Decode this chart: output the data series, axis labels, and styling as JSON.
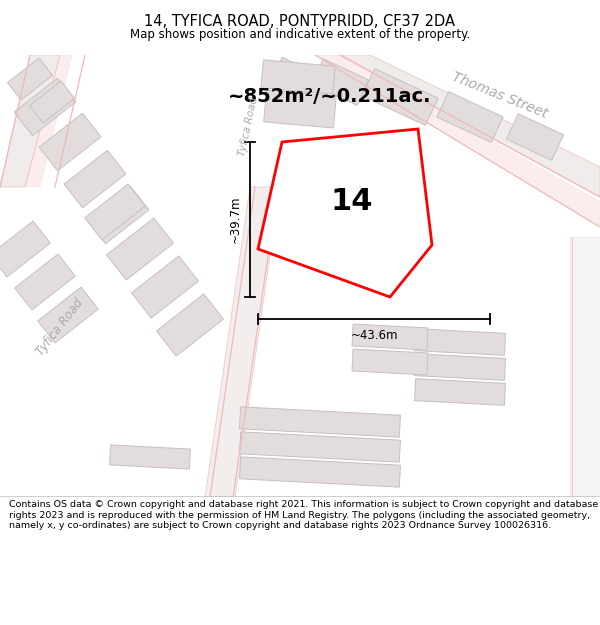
{
  "title": "14, TYFICA ROAD, PONTYPRIDD, CF37 2DA",
  "subtitle": "Map shows position and indicative extent of the property.",
  "footer": "Contains OS data © Crown copyright and database right 2021. This information is subject to Crown copyright and database rights 2023 and is reproduced with the permission of HM Land Registry. The polygons (including the associated geometry, namely x, y co-ordinates) are subject to Crown copyright and database rights 2023 Ordnance Survey 100026316.",
  "area_label": "~852m²/~0.211ac.",
  "number_label": "14",
  "width_label": "~43.6m",
  "height_label": "~39.7m",
  "street_thomas": "Thomas Street",
  "street_tyfica_left": "Tyfica Road",
  "street_tyfica_mid": "Tyfica Road",
  "map_bg": "#f2efef",
  "plot_color": "#ff0000",
  "road_color": "#f0b8b8",
  "building_fill": "#e2dcdc",
  "building_edge": "#c8c0c0",
  "title_fontsize": 10.5,
  "subtitle_fontsize": 8.5,
  "footer_fontsize": 6.8,
  "area_fontsize": 14,
  "number_fontsize": 22,
  "dim_fontsize": 8.5,
  "street_fontsize": 10
}
